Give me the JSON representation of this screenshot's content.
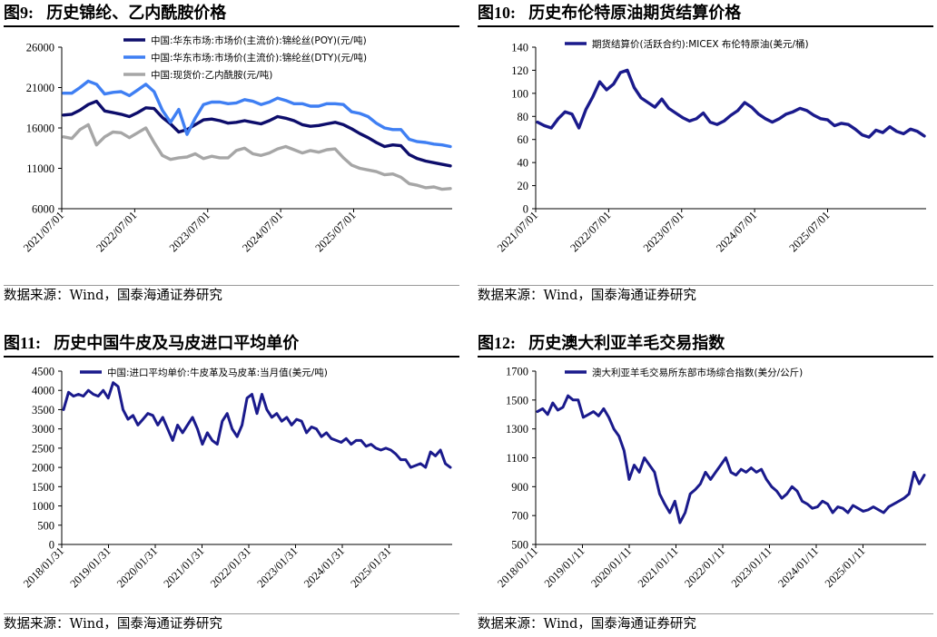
{
  "panels": [
    {
      "id": "fig9",
      "title_num": "图9:",
      "title_text": "历史锦纶、乙内酰胺价格",
      "source": "数据来源：Wind，国泰海通证券研究",
      "chart_data": {
        "type": "line",
        "x_ticks": [
          "2021/07/01",
          "2022/07/01",
          "2023/07/01",
          "2024/07/01",
          "2025/07/01"
        ],
        "y_ticks": [
          "26000",
          "21000",
          "16000",
          "11000",
          "6000"
        ],
        "ylim": [
          6000,
          26000
        ],
        "series": [
          {
            "name": "中国:华东市场:市场价(主流价):锦纶丝(POY)(元/吨)",
            "color": "#0d0d6b",
            "values": [
              17600,
              17700,
              18200,
              18900,
              19300,
              18100,
              17900,
              17700,
              17400,
              17900,
              18500,
              18400,
              17300,
              16500,
              15500,
              15800,
              16400,
              17000,
              17100,
              16900,
              16600,
              16700,
              16900,
              16700,
              16500,
              16900,
              17400,
              17200,
              16900,
              16400,
              16200,
              16300,
              16500,
              16700,
              16400,
              15900,
              15300,
              14800,
              14200,
              13700,
              13900,
              13800,
              12700,
              12200,
              11900,
              11700,
              11500,
              11300
            ]
          },
          {
            "name": "中国:华东市场:市场价(主流价):锦纶丝(DTY)(元/吨)",
            "color": "#3f7ff3",
            "values": [
              20300,
              20300,
              21000,
              21800,
              21400,
              20200,
              20400,
              20500,
              20000,
              20700,
              21400,
              20500,
              18200,
              16700,
              18300,
              15200,
              17200,
              18900,
              19200,
              19200,
              19000,
              19100,
              19500,
              19300,
              18900,
              19200,
              19700,
              19400,
              19000,
              19000,
              18700,
              18700,
              19000,
              19000,
              18900,
              18000,
              17800,
              17400,
              16600,
              16000,
              15800,
              15800,
              14600,
              14300,
              14200,
              14000,
              13900,
              13700
            ]
          },
          {
            "name": "中国:现货价:乙内酰胺(元/吨)",
            "color": "#a6a6a6",
            "values": [
              14900,
              14700,
              15800,
              16400,
              13900,
              14900,
              15500,
              15400,
              14800,
              15400,
              16000,
              14200,
              12600,
              12100,
              12300,
              12400,
              12800,
              12200,
              12500,
              12300,
              12300,
              13200,
              13500,
              12800,
              12600,
              12900,
              13400,
              13700,
              13300,
              12900,
              13200,
              13000,
              13300,
              13400,
              12300,
              11400,
              11000,
              10800,
              10600,
              10200,
              10300,
              9900,
              9100,
              8900,
              8600,
              8700,
              8400,
              8500
            ]
          }
        ]
      }
    },
    {
      "id": "fig10",
      "title_num": "图10:",
      "title_text": "历史布伦特原油期货结算价格",
      "source": "数据来源：Wind，国泰海通证券研究",
      "chart_data": {
        "type": "line",
        "x_ticks": [
          "2021/07/01",
          "2022/07/01",
          "2023/07/01",
          "2024/07/01",
          "2025/07/01"
        ],
        "y_ticks": [
          "140",
          "120",
          "100",
          "80",
          "60",
          "40",
          "20",
          "0"
        ],
        "ylim": [
          0,
          140
        ],
        "series": [
          {
            "name": "期货结算价(活跃合约):MICEX 布伦特原油(美元/桶)",
            "color": "#1a1a8c",
            "values": [
              75,
              72,
              70,
              78,
              84,
              82,
              70,
              86,
              97,
              110,
              103,
              108,
              118,
              120,
              105,
              96,
              92,
              88,
              95,
              87,
              83,
              79,
              76,
              78,
              83,
              75,
              73,
              76,
              81,
              85,
              92,
              88,
              82,
              78,
              75,
              78,
              82,
              84,
              87,
              85,
              81,
              78,
              77,
              72,
              74,
              73,
              69,
              64,
              62,
              68,
              66,
              71,
              67,
              65,
              69,
              67,
              63
            ]
          }
        ]
      }
    },
    {
      "id": "fig11",
      "title_num": "图11:",
      "title_text": "历史中国牛皮及马皮进口平均单价",
      "source": "数据来源：Wind，国泰海通证券研究",
      "chart_data": {
        "type": "line",
        "x_ticks": [
          "2018/01/31",
          "2019/01/31",
          "2020/01/31",
          "2021/01/31",
          "2022/01/31",
          "2023/01/31",
          "2024/01/31",
          "2025/01/31"
        ],
        "y_ticks": [
          "4500",
          "4000",
          "3500",
          "3000",
          "2500",
          "2000",
          "1500",
          "1000",
          "500",
          "0"
        ],
        "ylim": [
          0,
          4500
        ],
        "series": [
          {
            "name": "中国:进口平均单价:牛皮革及马皮革:当月值(美元/吨)",
            "color": "#1a1a8c",
            "values": [
              3500,
              3950,
              3850,
              3900,
              3850,
              4000,
              3900,
              3850,
              4000,
              3800,
              4200,
              4100,
              3500,
              3250,
              3350,
              3100,
              3250,
              3400,
              3350,
              3100,
              3300,
              3000,
              2700,
              3100,
              2900,
              3100,
              3300,
              3000,
              2600,
              2900,
              2700,
              2600,
              3200,
              3400,
              3000,
              2800,
              3100,
              3800,
              3900,
              3400,
              3900,
              3500,
              3300,
              3400,
              3200,
              3300,
              3100,
              3250,
              3200,
              2900,
              3050,
              3000,
              2800,
              2900,
              2750,
              2700,
              2650,
              2750,
              2600,
              2700,
              2700,
              2550,
              2600,
              2500,
              2450,
              2500,
              2450,
              2350,
              2200,
              2200,
              2000,
              2050,
              2100,
              2000,
              2400,
              2300,
              2450,
              2100,
              2000
            ]
          }
        ]
      }
    },
    {
      "id": "fig12",
      "title_num": "图12:",
      "title_text": "历史澳大利亚羊毛交易指数",
      "source": "数据来源：Wind，国泰海通证券研究",
      "chart_data": {
        "type": "line",
        "x_ticks": [
          "2018/01/11",
          "2019/01/11",
          "2020/01/11",
          "2021/01/11",
          "2022/01/11",
          "2023/01/11",
          "2024/01/11",
          "2025/01/11"
        ],
        "y_ticks": [
          "1700",
          "1500",
          "1300",
          "1100",
          "900",
          "700",
          "500"
        ],
        "ylim": [
          500,
          1700
        ],
        "series": [
          {
            "name": "澳大利亚羊毛交易所东部市场综合指数(美分/公斤)",
            "color": "#1a1a8c",
            "values": [
              1420,
              1440,
              1400,
              1480,
              1430,
              1450,
              1530,
              1500,
              1500,
              1380,
              1400,
              1420,
              1390,
              1440,
              1380,
              1300,
              1250,
              1150,
              950,
              1050,
              1000,
              1100,
              1050,
              1000,
              850,
              780,
              720,
              800,
              650,
              720,
              850,
              880,
              920,
              1000,
              950,
              1000,
              1050,
              1100,
              1000,
              980,
              1020,
              1000,
              1030,
              1000,
              1020,
              950,
              900,
              870,
              820,
              850,
              900,
              870,
              800,
              780,
              750,
              760,
              800,
              780,
              720,
              760,
              750,
              720,
              770,
              750,
              730,
              740,
              760,
              740,
              720,
              760,
              780,
              800,
              820,
              850,
              1000,
              920,
              980
            ]
          }
        ]
      }
    }
  ]
}
